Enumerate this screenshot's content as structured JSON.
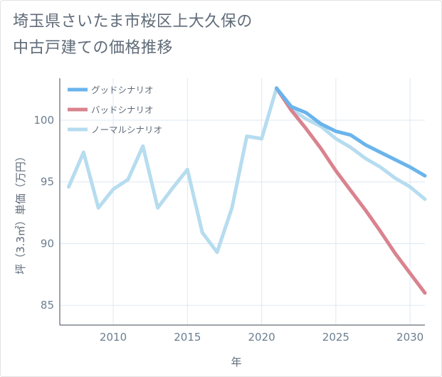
{
  "title": {
    "line1": "埼玉県さいたま市桜区上大久保の",
    "line2": "中古戸建ての価格推移"
  },
  "chart_data": {
    "type": "line",
    "xlabel": "年",
    "ylabel": "坪（3.3㎡）単価（万円）",
    "xlim": [
      2006.4,
      2031.0
    ],
    "ylim": [
      83.4,
      103.4
    ],
    "x_ticks": [
      2010,
      2015,
      2020,
      2025,
      2030
    ],
    "y_ticks": [
      85,
      90,
      95,
      100
    ],
    "legend_position": "top-left",
    "grid": true,
    "series": [
      {
        "name": "グッドシナリオ",
        "color": "#6ab4ec",
        "x": [
          2021,
          2022,
          2023,
          2024,
          2025,
          2026,
          2027,
          2028,
          2029,
          2030,
          2031
        ],
        "y": [
          102.6,
          101.1,
          100.6,
          99.7,
          99.1,
          98.8,
          98.0,
          97.4,
          96.8,
          96.2,
          95.5
        ]
      },
      {
        "name": "バッドシナリオ",
        "color": "#d9838f",
        "x": [
          2021,
          2022,
          2023,
          2024,
          2025,
          2026,
          2027,
          2028,
          2029,
          2030,
          2031
        ],
        "y": [
          102.6,
          100.8,
          99.3,
          97.7,
          95.9,
          94.3,
          92.7,
          91.0,
          89.2,
          87.6,
          86.0
        ]
      },
      {
        "name": "ノーマルシナリオ",
        "color": "#b6dcef",
        "x": [
          2007,
          2008,
          2009,
          2010,
          2011,
          2012,
          2013,
          2014,
          2015,
          2016,
          2017,
          2018,
          2019,
          2020,
          2021,
          2022,
          2023,
          2024,
          2025,
          2026,
          2027,
          2028,
          2029,
          2030,
          2031
        ],
        "y": [
          94.6,
          97.4,
          92.9,
          94.4,
          95.2,
          97.9,
          92.9,
          94.5,
          96.0,
          90.9,
          89.3,
          92.9,
          98.7,
          98.5,
          102.6,
          100.9,
          100.1,
          99.5,
          98.5,
          97.8,
          96.9,
          96.2,
          95.3,
          94.6,
          93.6
        ]
      }
    ]
  }
}
